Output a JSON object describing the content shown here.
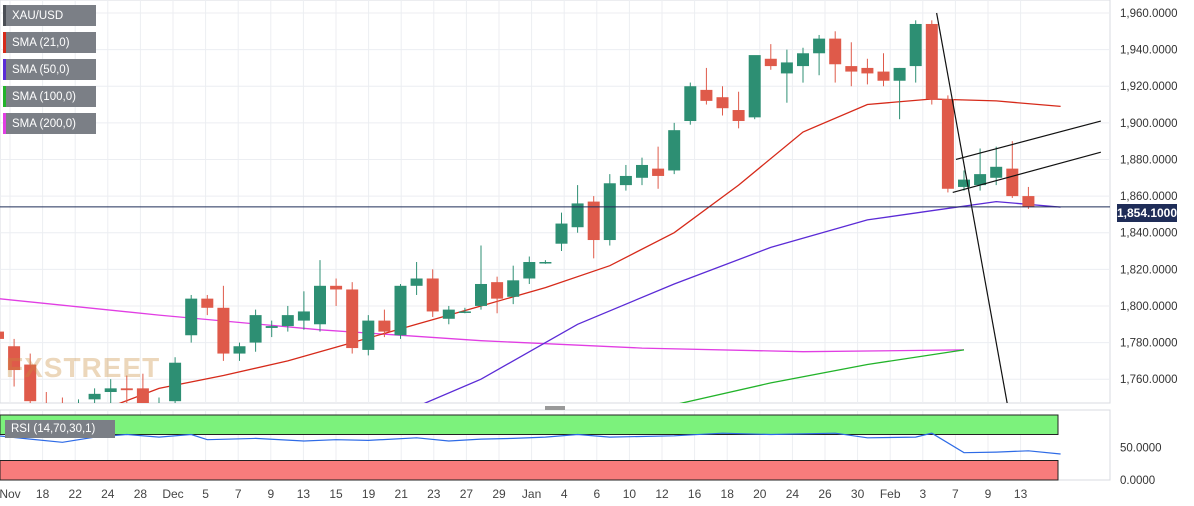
{
  "symbol": "XAU/USD",
  "last_price_label": "1,854.1000",
  "watermark": "FXSTREET",
  "indicators": [
    {
      "name": "SMA (21,0)",
      "color": "#d62a1a"
    },
    {
      "name": "SMA (50,0)",
      "color": "#5b2bd6"
    },
    {
      "name": "SMA (100,0)",
      "color": "#22b32a"
    },
    {
      "name": "SMA (200,0)",
      "color": "#e13ee3"
    }
  ],
  "rsi_label": "RSI (14,70,30,1)",
  "colors": {
    "up": "#2d8f73",
    "down": "#df5a4a",
    "sma21": "#d62a1a",
    "sma50": "#5b2bd6",
    "sma100": "#22b32a",
    "sma200": "#e13ee3",
    "rsi_line": "#2e6be6",
    "price_line": "#1f2d58"
  },
  "chart_data": {
    "type": "line",
    "price_axis": {
      "ylim": [
        1747,
        1966
      ],
      "ticks": [
        "1,960.0000",
        "1,940.0000",
        "1,920.0000",
        "1,900.0000",
        "1,880.0000",
        "1,860.0000",
        "1,840.0000",
        "1,820.0000",
        "1,800.0000",
        "1,780.0000",
        "1,760.0000"
      ],
      "tick_values": [
        1960,
        1940,
        1920,
        1900,
        1880,
        1860,
        1840,
        1820,
        1800,
        1780,
        1760
      ]
    },
    "rsi_axis": {
      "ylim": [
        0,
        100
      ],
      "ticks": [
        "50.0000",
        "0.0000"
      ],
      "tick_values": [
        50,
        0
      ],
      "overbought": 70,
      "oversold": 30
    },
    "x_labels": [
      "Nov",
      "18",
      "22",
      "24",
      "28",
      "Dec",
      "5",
      "7",
      "9",
      "13",
      "15",
      "19",
      "21",
      "23",
      "27",
      "29",
      "Jan",
      "4",
      "6",
      "10",
      "12",
      "16",
      "18",
      "20",
      "24",
      "26",
      "30",
      "Feb",
      "3",
      "7",
      "9",
      "13"
    ],
    "last_price": 1854.1,
    "candles": [
      {
        "o": 1786,
        "h": 1790,
        "l": 1776,
        "c": 1782
      },
      {
        "o": 1778,
        "h": 1782,
        "l": 1756,
        "c": 1765
      },
      {
        "o": 1768,
        "h": 1774,
        "l": 1738,
        "c": 1748
      },
      {
        "o": 1747,
        "h": 1753,
        "l": 1738,
        "c": 1744
      },
      {
        "o": 1744,
        "h": 1750,
        "l": 1736,
        "c": 1742
      },
      {
        "o": 1745,
        "h": 1749,
        "l": 1736,
        "c": 1747
      },
      {
        "o": 1749,
        "h": 1755,
        "l": 1742,
        "c": 1752
      },
      {
        "o": 1753,
        "h": 1760,
        "l": 1746,
        "c": 1755
      },
      {
        "o": 1755,
        "h": 1762,
        "l": 1744,
        "c": 1754
      },
      {
        "o": 1755,
        "h": 1763,
        "l": 1740,
        "c": 1742
      },
      {
        "o": 1742,
        "h": 1750,
        "l": 1735,
        "c": 1746
      },
      {
        "o": 1748,
        "h": 1772,
        "l": 1742,
        "c": 1769
      },
      {
        "o": 1784,
        "h": 1806,
        "l": 1780,
        "c": 1804
      },
      {
        "o": 1804,
        "h": 1806,
        "l": 1795,
        "c": 1799
      },
      {
        "o": 1799,
        "h": 1811,
        "l": 1770,
        "c": 1774
      },
      {
        "o": 1774,
        "h": 1780,
        "l": 1770,
        "c": 1778
      },
      {
        "o": 1780,
        "h": 1798,
        "l": 1775,
        "c": 1795
      },
      {
        "o": 1788,
        "h": 1792,
        "l": 1783,
        "c": 1789
      },
      {
        "o": 1789,
        "h": 1800,
        "l": 1786,
        "c": 1795
      },
      {
        "o": 1792,
        "h": 1808,
        "l": 1787,
        "c": 1797
      },
      {
        "o": 1790,
        "h": 1825,
        "l": 1786,
        "c": 1811
      },
      {
        "o": 1811,
        "h": 1815,
        "l": 1800,
        "c": 1809
      },
      {
        "o": 1809,
        "h": 1813,
        "l": 1774,
        "c": 1777
      },
      {
        "o": 1776,
        "h": 1795,
        "l": 1773,
        "c": 1792
      },
      {
        "o": 1792,
        "h": 1798,
        "l": 1783,
        "c": 1786
      },
      {
        "o": 1784,
        "h": 1812,
        "l": 1782,
        "c": 1811
      },
      {
        "o": 1811,
        "h": 1824,
        "l": 1806,
        "c": 1815
      },
      {
        "o": 1815,
        "h": 1820,
        "l": 1794,
        "c": 1797
      },
      {
        "o": 1793,
        "h": 1800,
        "l": 1790,
        "c": 1798
      },
      {
        "o": 1797,
        "h": 1799,
        "l": 1796,
        "c": 1797
      },
      {
        "o": 1800,
        "h": 1833,
        "l": 1798,
        "c": 1812
      },
      {
        "o": 1813,
        "h": 1816,
        "l": 1796,
        "c": 1804
      },
      {
        "o": 1805,
        "h": 1822,
        "l": 1801,
        "c": 1814
      },
      {
        "o": 1815,
        "h": 1827,
        "l": 1812,
        "c": 1824
      },
      {
        "o": 1824,
        "h": 1825,
        "l": 1823,
        "c": 1824
      },
      {
        "o": 1834,
        "h": 1851,
        "l": 1830,
        "c": 1845
      },
      {
        "o": 1843,
        "h": 1866,
        "l": 1840,
        "c": 1856
      },
      {
        "o": 1857,
        "h": 1860,
        "l": 1826,
        "c": 1836
      },
      {
        "o": 1836,
        "h": 1872,
        "l": 1833,
        "c": 1867
      },
      {
        "o": 1866,
        "h": 1877,
        "l": 1863,
        "c": 1871
      },
      {
        "o": 1870,
        "h": 1881,
        "l": 1866,
        "c": 1877
      },
      {
        "o": 1875,
        "h": 1887,
        "l": 1864,
        "c": 1871
      },
      {
        "o": 1874,
        "h": 1900,
        "l": 1872,
        "c": 1896
      },
      {
        "o": 1901,
        "h": 1922,
        "l": 1899,
        "c": 1920
      },
      {
        "o": 1918,
        "h": 1930,
        "l": 1910,
        "c": 1912
      },
      {
        "o": 1914,
        "h": 1920,
        "l": 1904,
        "c": 1908
      },
      {
        "o": 1907,
        "h": 1917,
        "l": 1897,
        "c": 1901
      },
      {
        "o": 1903,
        "h": 1936,
        "l": 1902,
        "c": 1937
      },
      {
        "o": 1935,
        "h": 1943,
        "l": 1929,
        "c": 1931
      },
      {
        "o": 1927,
        "h": 1940,
        "l": 1911,
        "c": 1933
      },
      {
        "o": 1931,
        "h": 1941,
        "l": 1922,
        "c": 1938
      },
      {
        "o": 1938,
        "h": 1948,
        "l": 1926,
        "c": 1946
      },
      {
        "o": 1946,
        "h": 1950,
        "l": 1922,
        "c": 1932
      },
      {
        "o": 1931,
        "h": 1944,
        "l": 1920,
        "c": 1928
      },
      {
        "o": 1930,
        "h": 1935,
        "l": 1921,
        "c": 1927
      },
      {
        "o": 1928,
        "h": 1938,
        "l": 1920,
        "c": 1923
      },
      {
        "o": 1923,
        "h": 1930,
        "l": 1902,
        "c": 1930
      },
      {
        "o": 1931,
        "h": 1956,
        "l": 1922,
        "c": 1954
      },
      {
        "o": 1954,
        "h": 1956,
        "l": 1910,
        "c": 1913
      },
      {
        "o": 1913,
        "h": 1915,
        "l": 1862,
        "c": 1864
      },
      {
        "o": 1865,
        "h": 1874,
        "l": 1863,
        "c": 1869
      },
      {
        "o": 1866,
        "h": 1886,
        "l": 1863,
        "c": 1872
      },
      {
        "o": 1870,
        "h": 1887,
        "l": 1866,
        "c": 1876
      },
      {
        "o": 1875,
        "h": 1890,
        "l": 1859,
        "c": 1860
      },
      {
        "o": 1860,
        "h": 1865,
        "l": 1853,
        "c": 1854
      }
    ],
    "sma21": [
      [
        7,
        1745
      ],
      [
        10,
        1755
      ],
      [
        14,
        1762
      ],
      [
        18,
        1770
      ],
      [
        22,
        1780
      ],
      [
        26,
        1790
      ],
      [
        30,
        1800
      ],
      [
        34,
        1810
      ],
      [
        38,
        1822
      ],
      [
        42,
        1840
      ],
      [
        46,
        1866
      ],
      [
        50,
        1895
      ],
      [
        54,
        1910
      ],
      [
        58,
        1913
      ],
      [
        62,
        1912
      ],
      [
        66,
        1909
      ]
    ],
    "sma50": [
      [
        26,
        1745
      ],
      [
        30,
        1760
      ],
      [
        36,
        1790
      ],
      [
        42,
        1812
      ],
      [
        48,
        1832
      ],
      [
        54,
        1847
      ],
      [
        58,
        1852
      ],
      [
        62,
        1857
      ],
      [
        66,
        1854
      ]
    ],
    "sma100": [
      [
        42,
        1746
      ],
      [
        48,
        1758
      ],
      [
        54,
        1768
      ],
      [
        60,
        1776
      ]
    ],
    "sma200": [
      [
        0,
        1804
      ],
      [
        10,
        1795
      ],
      [
        20,
        1787
      ],
      [
        30,
        1781
      ],
      [
        40,
        1777
      ],
      [
        50,
        1775
      ],
      [
        60,
        1776
      ]
    ],
    "trendlines": [
      {
        "x1": 58.3,
        "y1": 1960,
        "x2": 62.7,
        "y2": 1746
      },
      {
        "x1": 59.5,
        "y1": 1880,
        "x2": 68.5,
        "y2": 1901
      },
      {
        "x1": 59.3,
        "y1": 1862,
        "x2": 68.5,
        "y2": 1884
      }
    ],
    "rsi": [
      [
        0,
        68
      ],
      [
        2,
        63
      ],
      [
        4,
        58
      ],
      [
        6,
        66
      ],
      [
        8,
        70
      ],
      [
        10,
        66
      ],
      [
        12,
        70
      ],
      [
        13,
        62
      ],
      [
        16,
        64
      ],
      [
        19,
        60
      ],
      [
        21,
        62
      ],
      [
        23,
        61
      ],
      [
        26,
        65
      ],
      [
        28,
        60
      ],
      [
        30,
        63
      ],
      [
        32,
        64
      ],
      [
        34,
        66
      ],
      [
        36,
        70
      ],
      [
        38,
        66
      ],
      [
        42,
        68
      ],
      [
        45,
        72
      ],
      [
        48,
        70
      ],
      [
        52,
        72
      ],
      [
        54,
        65
      ],
      [
        57,
        66
      ],
      [
        58,
        72
      ],
      [
        60,
        42
      ],
      [
        62,
        43
      ],
      [
        64,
        45
      ],
      [
        66,
        40
      ]
    ]
  }
}
